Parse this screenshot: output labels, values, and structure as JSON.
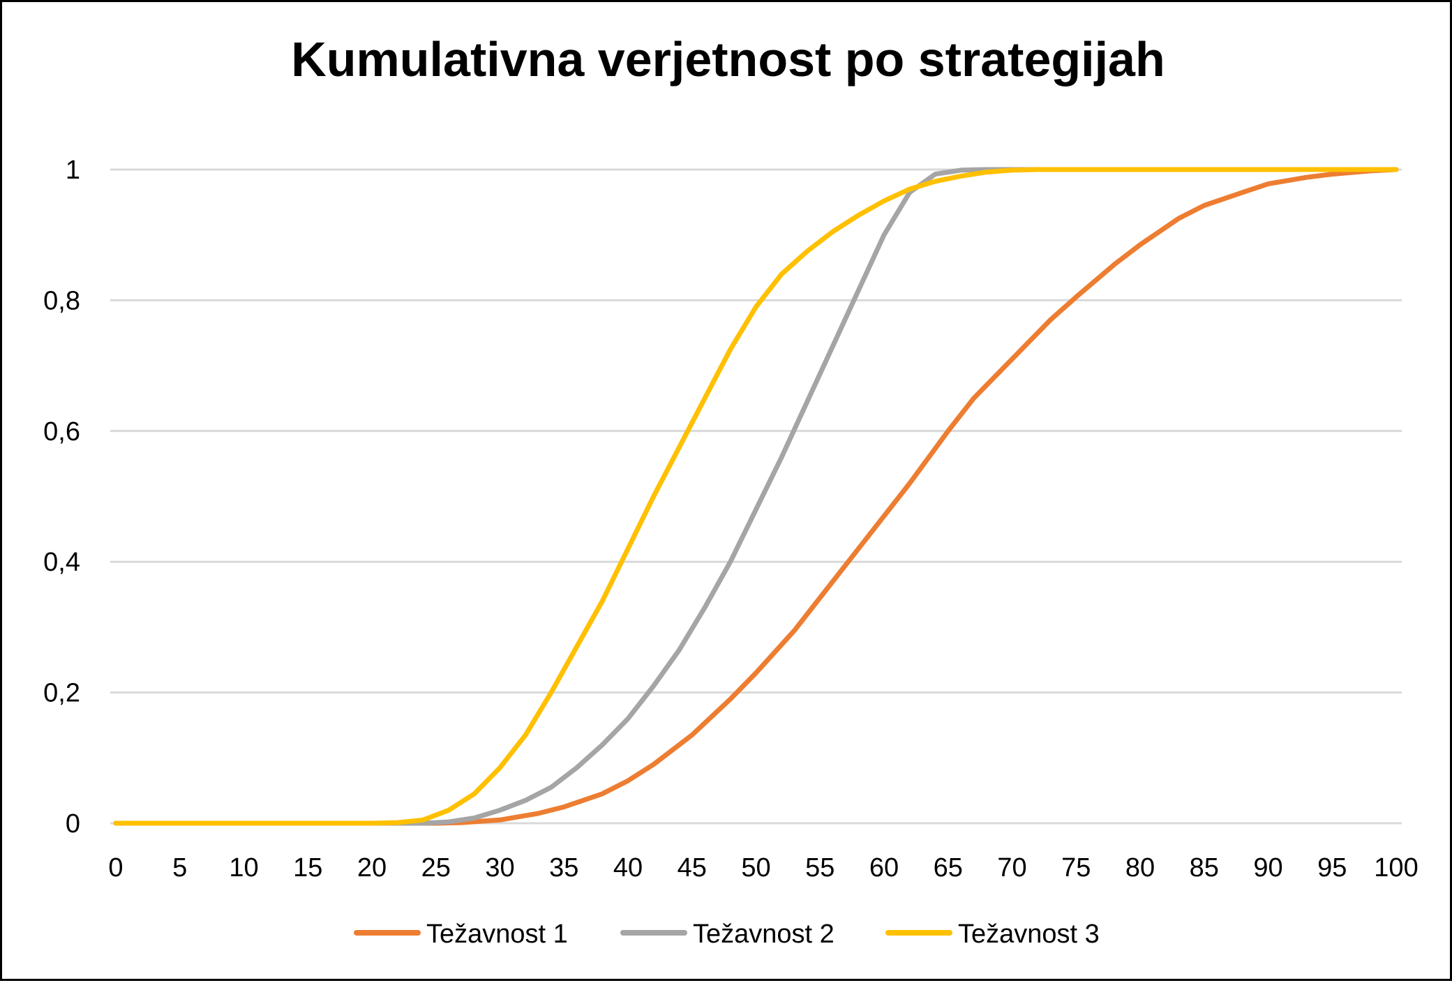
{
  "chart_data": {
    "type": "line",
    "title": "Kumulativna verjetnost po strategijah",
    "xlabel": "",
    "ylabel": "",
    "xlim": [
      0,
      100
    ],
    "ylim": [
      0,
      1
    ],
    "x_ticks": [
      "0",
      "5",
      "10",
      "15",
      "20",
      "25",
      "30",
      "35",
      "40",
      "45",
      "50",
      "55",
      "60",
      "65",
      "70",
      "75",
      "80",
      "85",
      "90",
      "95",
      "100"
    ],
    "y_ticks": [
      "0",
      "0,2",
      "0,4",
      "0,6",
      "0,8",
      "1"
    ],
    "grid": "horizontal",
    "legend_position": "bottom",
    "series": [
      {
        "name": "Težavnost 1",
        "color": "#ED7D31",
        "points": [
          [
            0,
            0
          ],
          [
            20,
            0
          ],
          [
            25,
            0
          ],
          [
            27,
            0.001
          ],
          [
            30,
            0.005
          ],
          [
            33,
            0.015
          ],
          [
            35,
            0.025
          ],
          [
            38,
            0.045
          ],
          [
            40,
            0.065
          ],
          [
            42,
            0.09
          ],
          [
            45,
            0.135
          ],
          [
            48,
            0.19
          ],
          [
            50,
            0.23
          ],
          [
            53,
            0.295
          ],
          [
            55,
            0.345
          ],
          [
            58,
            0.42
          ],
          [
            60,
            0.47
          ],
          [
            62,
            0.52
          ],
          [
            65,
            0.6
          ],
          [
            67,
            0.65
          ],
          [
            70,
            0.71
          ],
          [
            73,
            0.77
          ],
          [
            75,
            0.805
          ],
          [
            78,
            0.855
          ],
          [
            80,
            0.885
          ],
          [
            83,
            0.925
          ],
          [
            85,
            0.945
          ],
          [
            88,
            0.965
          ],
          [
            90,
            0.978
          ],
          [
            93,
            0.988
          ],
          [
            95,
            0.993
          ],
          [
            98,
            0.998
          ],
          [
            100,
            1
          ]
        ]
      },
      {
        "name": "Težavnost 2",
        "color": "#A5A5A5",
        "points": [
          [
            0,
            0
          ],
          [
            20,
            0
          ],
          [
            24,
            0
          ],
          [
            26,
            0.002
          ],
          [
            28,
            0.008
          ],
          [
            30,
            0.02
          ],
          [
            32,
            0.035
          ],
          [
            34,
            0.055
          ],
          [
            36,
            0.085
          ],
          [
            38,
            0.12
          ],
          [
            40,
            0.16
          ],
          [
            42,
            0.21
          ],
          [
            44,
            0.265
          ],
          [
            46,
            0.33
          ],
          [
            48,
            0.4
          ],
          [
            50,
            0.48
          ],
          [
            52,
            0.56
          ],
          [
            54,
            0.645
          ],
          [
            56,
            0.73
          ],
          [
            58,
            0.815
          ],
          [
            60,
            0.9
          ],
          [
            62,
            0.965
          ],
          [
            64,
            0.993
          ],
          [
            66,
            0.999
          ],
          [
            68,
            1
          ],
          [
            100,
            1
          ]
        ]
      },
      {
        "name": "Težavnost 3",
        "color": "#FFC000",
        "points": [
          [
            0,
            0
          ],
          [
            20,
            0
          ],
          [
            22,
            0.001
          ],
          [
            24,
            0.005
          ],
          [
            26,
            0.02
          ],
          [
            28,
            0.045
          ],
          [
            30,
            0.085
          ],
          [
            32,
            0.135
          ],
          [
            34,
            0.2
          ],
          [
            36,
            0.27
          ],
          [
            38,
            0.34
          ],
          [
            40,
            0.42
          ],
          [
            42,
            0.5
          ],
          [
            44,
            0.575
          ],
          [
            46,
            0.65
          ],
          [
            48,
            0.725
          ],
          [
            50,
            0.79
          ],
          [
            52,
            0.84
          ],
          [
            54,
            0.875
          ],
          [
            56,
            0.905
          ],
          [
            58,
            0.93
          ],
          [
            60,
            0.952
          ],
          [
            62,
            0.97
          ],
          [
            64,
            0.982
          ],
          [
            66,
            0.99
          ],
          [
            68,
            0.996
          ],
          [
            70,
            0.999
          ],
          [
            72,
            1
          ],
          [
            100,
            1
          ]
        ]
      }
    ]
  }
}
